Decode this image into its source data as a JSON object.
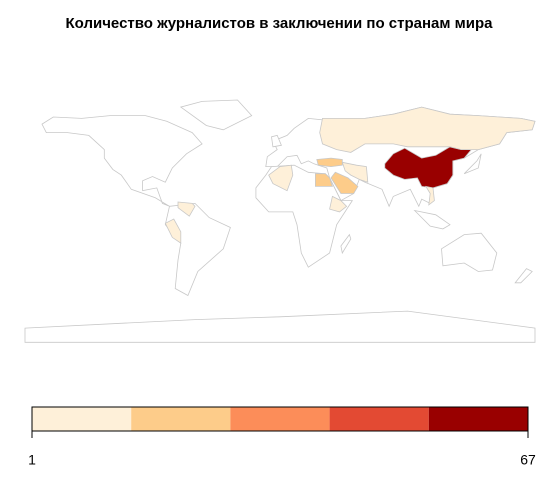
{
  "chart_data": {
    "type": "choropleth",
    "title": "Количество журналистов в заключении по странам мира",
    "colors": [
      "#fef0d9",
      "#fdcc8a",
      "#fc8d59",
      "#e34a33",
      "#990000"
    ],
    "xlim": [
      1,
      67
    ],
    "xticks": [
      1,
      67
    ],
    "categories": [
      null,
      null,
      null,
      null,
      null,
      null,
      null,
      null,
      null,
      null,
      null
    ],
    "values": [
      67,
      5,
      20,
      20,
      20,
      5,
      5,
      5,
      5,
      5,
      5
    ]
  }
}
